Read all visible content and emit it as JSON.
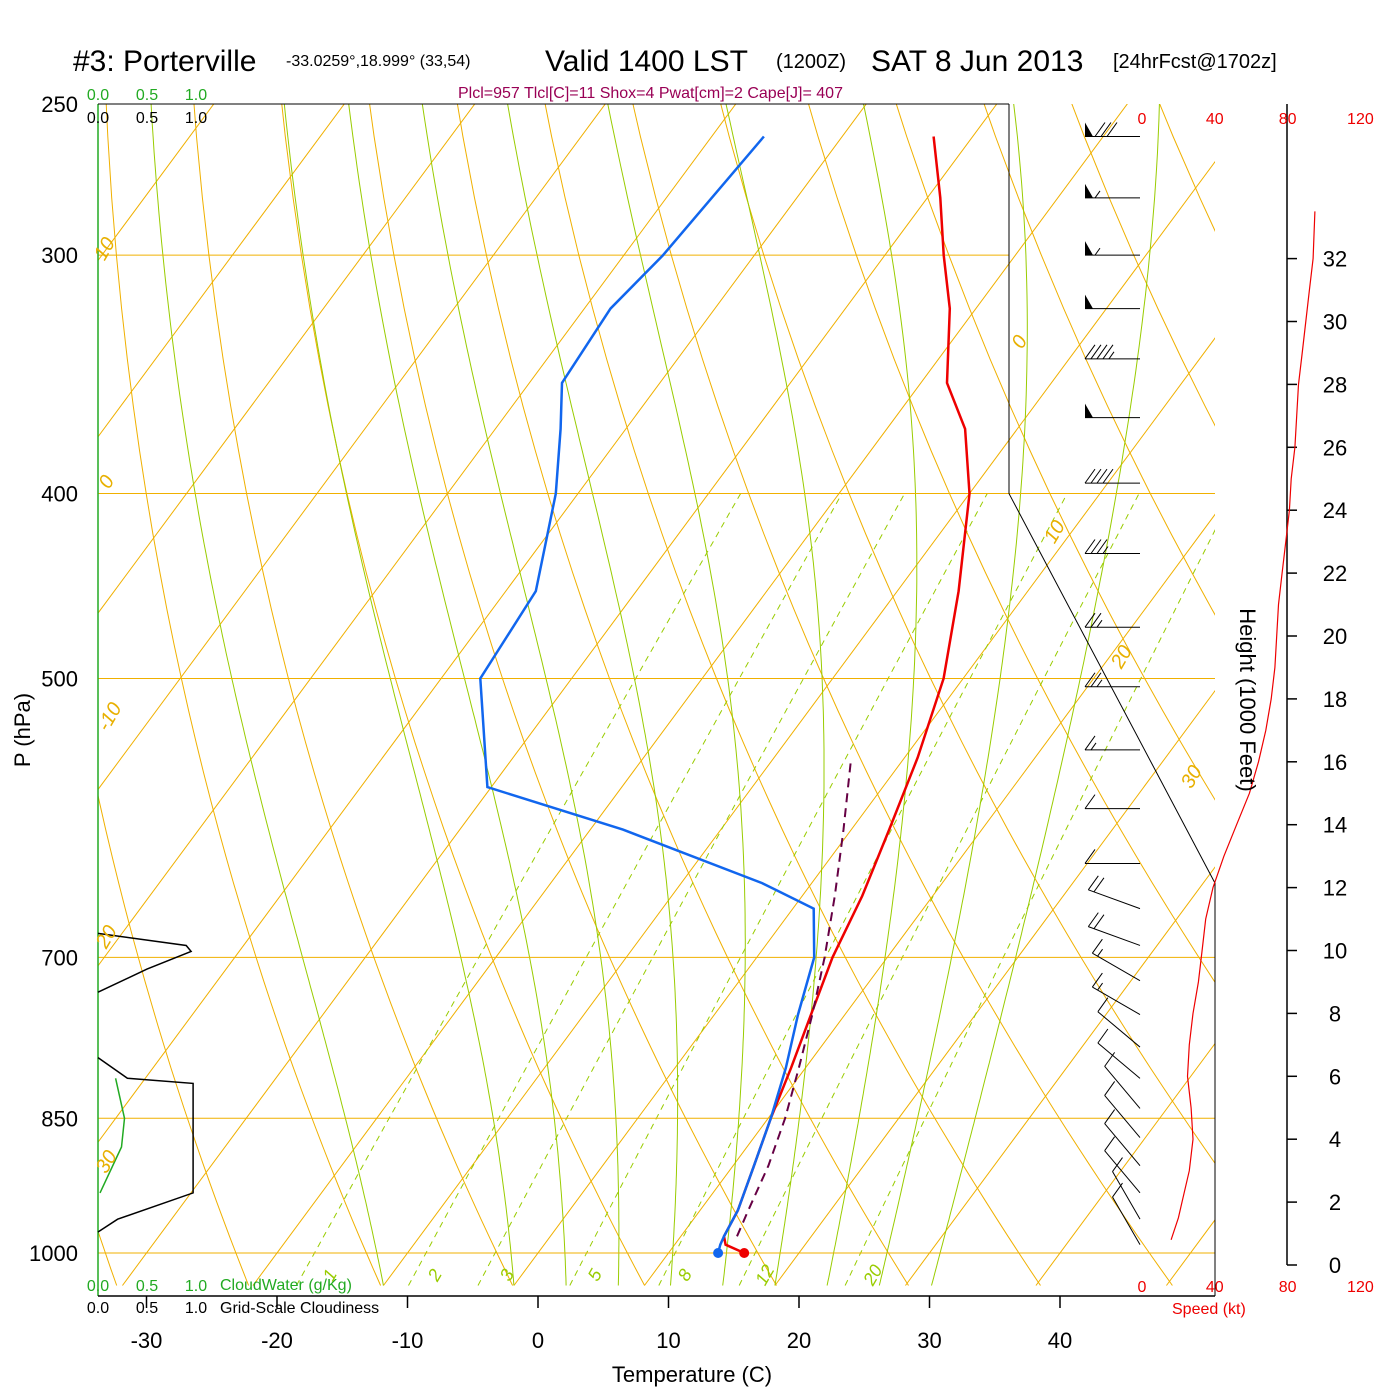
{
  "header": {
    "station": "#3: Porterville",
    "coords": "-33.0259°,18.999° (33,54)",
    "valid": "Valid 1400 LST",
    "zulu": "(1200Z)",
    "date": "SAT 8 Jun 2013",
    "forecast": "[24hrFcst@1702z]",
    "indices": "Plcl=957 Tlcl[C]=11 Shox=4 Pwat[cm]=2 Cape[J]= 407"
  },
  "colors": {
    "temperature": "#ee0000",
    "dewpoint": "#1166ee",
    "parcel": "#660044",
    "isotherm": "#f0b000",
    "dry_adiabat": "#f0b000",
    "moist_adiabat": "#99cc00",
    "mixing_ratio": "#99cc00",
    "cloud_water": "#22aa22",
    "speed": "#ee0000"
  },
  "icons": {
    "wind_barb": "wind-barb-icon"
  },
  "chart_data": {
    "type": "line",
    "title": "#3: Porterville",
    "xlabel": "Temperature (C)",
    "ylabel": "P (hPa)",
    "skew_t": true,
    "pressure_scale": "log",
    "xlim": [
      -34,
      48
    ],
    "ylim": [
      1020,
      250
    ],
    "pressure_ticks": [
      "250",
      "300",
      "400",
      "500",
      "700",
      "850",
      "1000"
    ],
    "temperature_ticks": [
      "-30",
      "-20",
      "-10",
      "0",
      "10",
      "20",
      "30",
      "40"
    ],
    "isotherm_labels": [
      "10",
      "0",
      "-10",
      "20",
      "30",
      "0",
      "10",
      "20",
      "30"
    ],
    "mixing_ratio_labels": [
      "1",
      "2",
      "3",
      "5",
      "8",
      "12",
      "20"
    ],
    "series": [
      {
        "name": "Temperature",
        "points": [
          [
            1000,
            15.8
          ],
          [
            990,
            13.9
          ],
          [
            980,
            13.3
          ],
          [
            950,
            12.9
          ],
          [
            900,
            11.6
          ],
          [
            850,
            10.2
          ],
          [
            800,
            8.9
          ],
          [
            750,
            7.4
          ],
          [
            700,
            5.8
          ],
          [
            650,
            4.6
          ],
          [
            600,
            2.9
          ],
          [
            550,
            1.0
          ],
          [
            500,
            -1.5
          ],
          [
            450,
            -5.3
          ],
          [
            400,
            -10.0
          ],
          [
            370,
            -14.0
          ],
          [
            350,
            -18.0
          ],
          [
            320,
            -22.0
          ],
          [
            300,
            -25.5
          ],
          [
            280,
            -29.0
          ],
          [
            260,
            -33.0
          ]
        ]
      },
      {
        "name": "Dew point",
        "points": [
          [
            1000,
            13.8
          ],
          [
            990,
            13.5
          ],
          [
            980,
            13.3
          ],
          [
            950,
            12.9
          ],
          [
            900,
            11.6
          ],
          [
            850,
            10.2
          ],
          [
            800,
            8.5
          ],
          [
            750,
            6.4
          ],
          [
            700,
            4.4
          ],
          [
            660,
            1.6
          ],
          [
            640,
            -3.8
          ],
          [
            600,
            -17.5
          ],
          [
            570,
            -30.3
          ],
          [
            500,
            -37.0
          ],
          [
            450,
            -37.7
          ],
          [
            400,
            -41.7
          ],
          [
            370,
            -45.0
          ],
          [
            350,
            -47.5
          ],
          [
            320,
            -48.0
          ],
          [
            300,
            -47.0
          ],
          [
            260,
            -46.0
          ]
        ]
      },
      {
        "name": "Parcel",
        "points": [
          [
            980,
            14.3
          ],
          [
            950,
            13.7
          ],
          [
            900,
            12.7
          ],
          [
            850,
            11.3
          ],
          [
            800,
            9.5
          ],
          [
            750,
            7.5
          ],
          [
            700,
            5.2
          ],
          [
            650,
            2.5
          ],
          [
            600,
            -0.6
          ],
          [
            550,
            -4.1
          ]
        ]
      }
    ],
    "cloud_water": {
      "label": "CloudWater (g/Kg)",
      "ticks": [
        "0.0",
        "0.5",
        "1.0"
      ],
      "points": [
        [
          810,
          0.18
        ],
        [
          850,
          0.27
        ],
        [
          880,
          0.24
        ],
        [
          930,
          0.02
        ]
      ]
    },
    "cloudiness": {
      "label": "Grid-Scale Cloudiness",
      "ticks": [
        "0.0",
        "0.5",
        "1.0"
      ],
      "upper_layer": [
        [
          680,
          0.0
        ],
        [
          690,
          0.9
        ],
        [
          695,
          0.95
        ],
        [
          710,
          0.5
        ],
        [
          730,
          0.0
        ]
      ],
      "lower_layer": [
        [
          790,
          0.0
        ],
        [
          810,
          0.3
        ],
        [
          815,
          0.97
        ],
        [
          930,
          0.97
        ],
        [
          960,
          0.2
        ],
        [
          975,
          0.0
        ]
      ]
    },
    "wind_speed": {
      "label": "Speed (kt)",
      "ticks": [
        "0",
        "40",
        "80",
        "120"
      ],
      "height_label": "Height (1000 Feet)",
      "height_ticks": [
        "0",
        "2",
        "4",
        "6",
        "8",
        "10",
        "12",
        "14",
        "16",
        "18",
        "20",
        "22",
        "24",
        "26",
        "28",
        "30",
        "32"
      ],
      "profile": [
        [
          0.8,
          16
        ],
        [
          1.5,
          20
        ],
        [
          2,
          22
        ],
        [
          3,
          26
        ],
        [
          4,
          28
        ],
        [
          5,
          27
        ],
        [
          6,
          25
        ],
        [
          7,
          26
        ],
        [
          8,
          28
        ],
        [
          9,
          31
        ],
        [
          10,
          33
        ],
        [
          11,
          35
        ],
        [
          12,
          39
        ],
        [
          13,
          45
        ],
        [
          14,
          52
        ],
        [
          15,
          59
        ],
        [
          16,
          64
        ],
        [
          17,
          68
        ],
        [
          18,
          71
        ],
        [
          19,
          73
        ],
        [
          20,
          74
        ],
        [
          21,
          75
        ],
        [
          22,
          77
        ],
        [
          23,
          79
        ],
        [
          24,
          81
        ],
        [
          25,
          82
        ],
        [
          26,
          84
        ],
        [
          27,
          85
        ],
        [
          28,
          86
        ],
        [
          29,
          88
        ],
        [
          30,
          90
        ],
        [
          31,
          92
        ],
        [
          32,
          94
        ],
        [
          33.5,
          95
        ]
      ]
    },
    "wind_barbs": [
      {
        "p": 260,
        "speed": 80,
        "dir": 270
      },
      {
        "p": 280,
        "speed": 55,
        "dir": 270
      },
      {
        "p": 300,
        "speed": 55,
        "dir": 270
      },
      {
        "p": 320,
        "speed": 50,
        "dir": 270
      },
      {
        "p": 340,
        "speed": 45,
        "dir": 270
      },
      {
        "p": 365,
        "speed": 50,
        "dir": 270
      },
      {
        "p": 395,
        "speed": 40,
        "dir": 270
      },
      {
        "p": 430,
        "speed": 35,
        "dir": 270
      },
      {
        "p": 470,
        "speed": 25,
        "dir": 270
      },
      {
        "p": 505,
        "speed": 25,
        "dir": 270
      },
      {
        "p": 545,
        "speed": 15,
        "dir": 270
      },
      {
        "p": 585,
        "speed": 10,
        "dir": 270
      },
      {
        "p": 625,
        "speed": 10,
        "dir": 270
      },
      {
        "p": 660,
        "speed": 20,
        "dir": 290
      },
      {
        "p": 690,
        "speed": 20,
        "dir": 290
      },
      {
        "p": 720,
        "speed": 15,
        "dir": 300
      },
      {
        "p": 750,
        "speed": 15,
        "dir": 300
      },
      {
        "p": 780,
        "speed": 10,
        "dir": 310
      },
      {
        "p": 810,
        "speed": 10,
        "dir": 310
      },
      {
        "p": 840,
        "speed": 10,
        "dir": 320
      },
      {
        "p": 870,
        "speed": 10,
        "dir": 320
      },
      {
        "p": 900,
        "speed": 10,
        "dir": 320
      },
      {
        "p": 930,
        "speed": 10,
        "dir": 320
      },
      {
        "p": 960,
        "speed": 10,
        "dir": 330
      },
      {
        "p": 990,
        "speed": 10,
        "dir": 330
      }
    ]
  }
}
